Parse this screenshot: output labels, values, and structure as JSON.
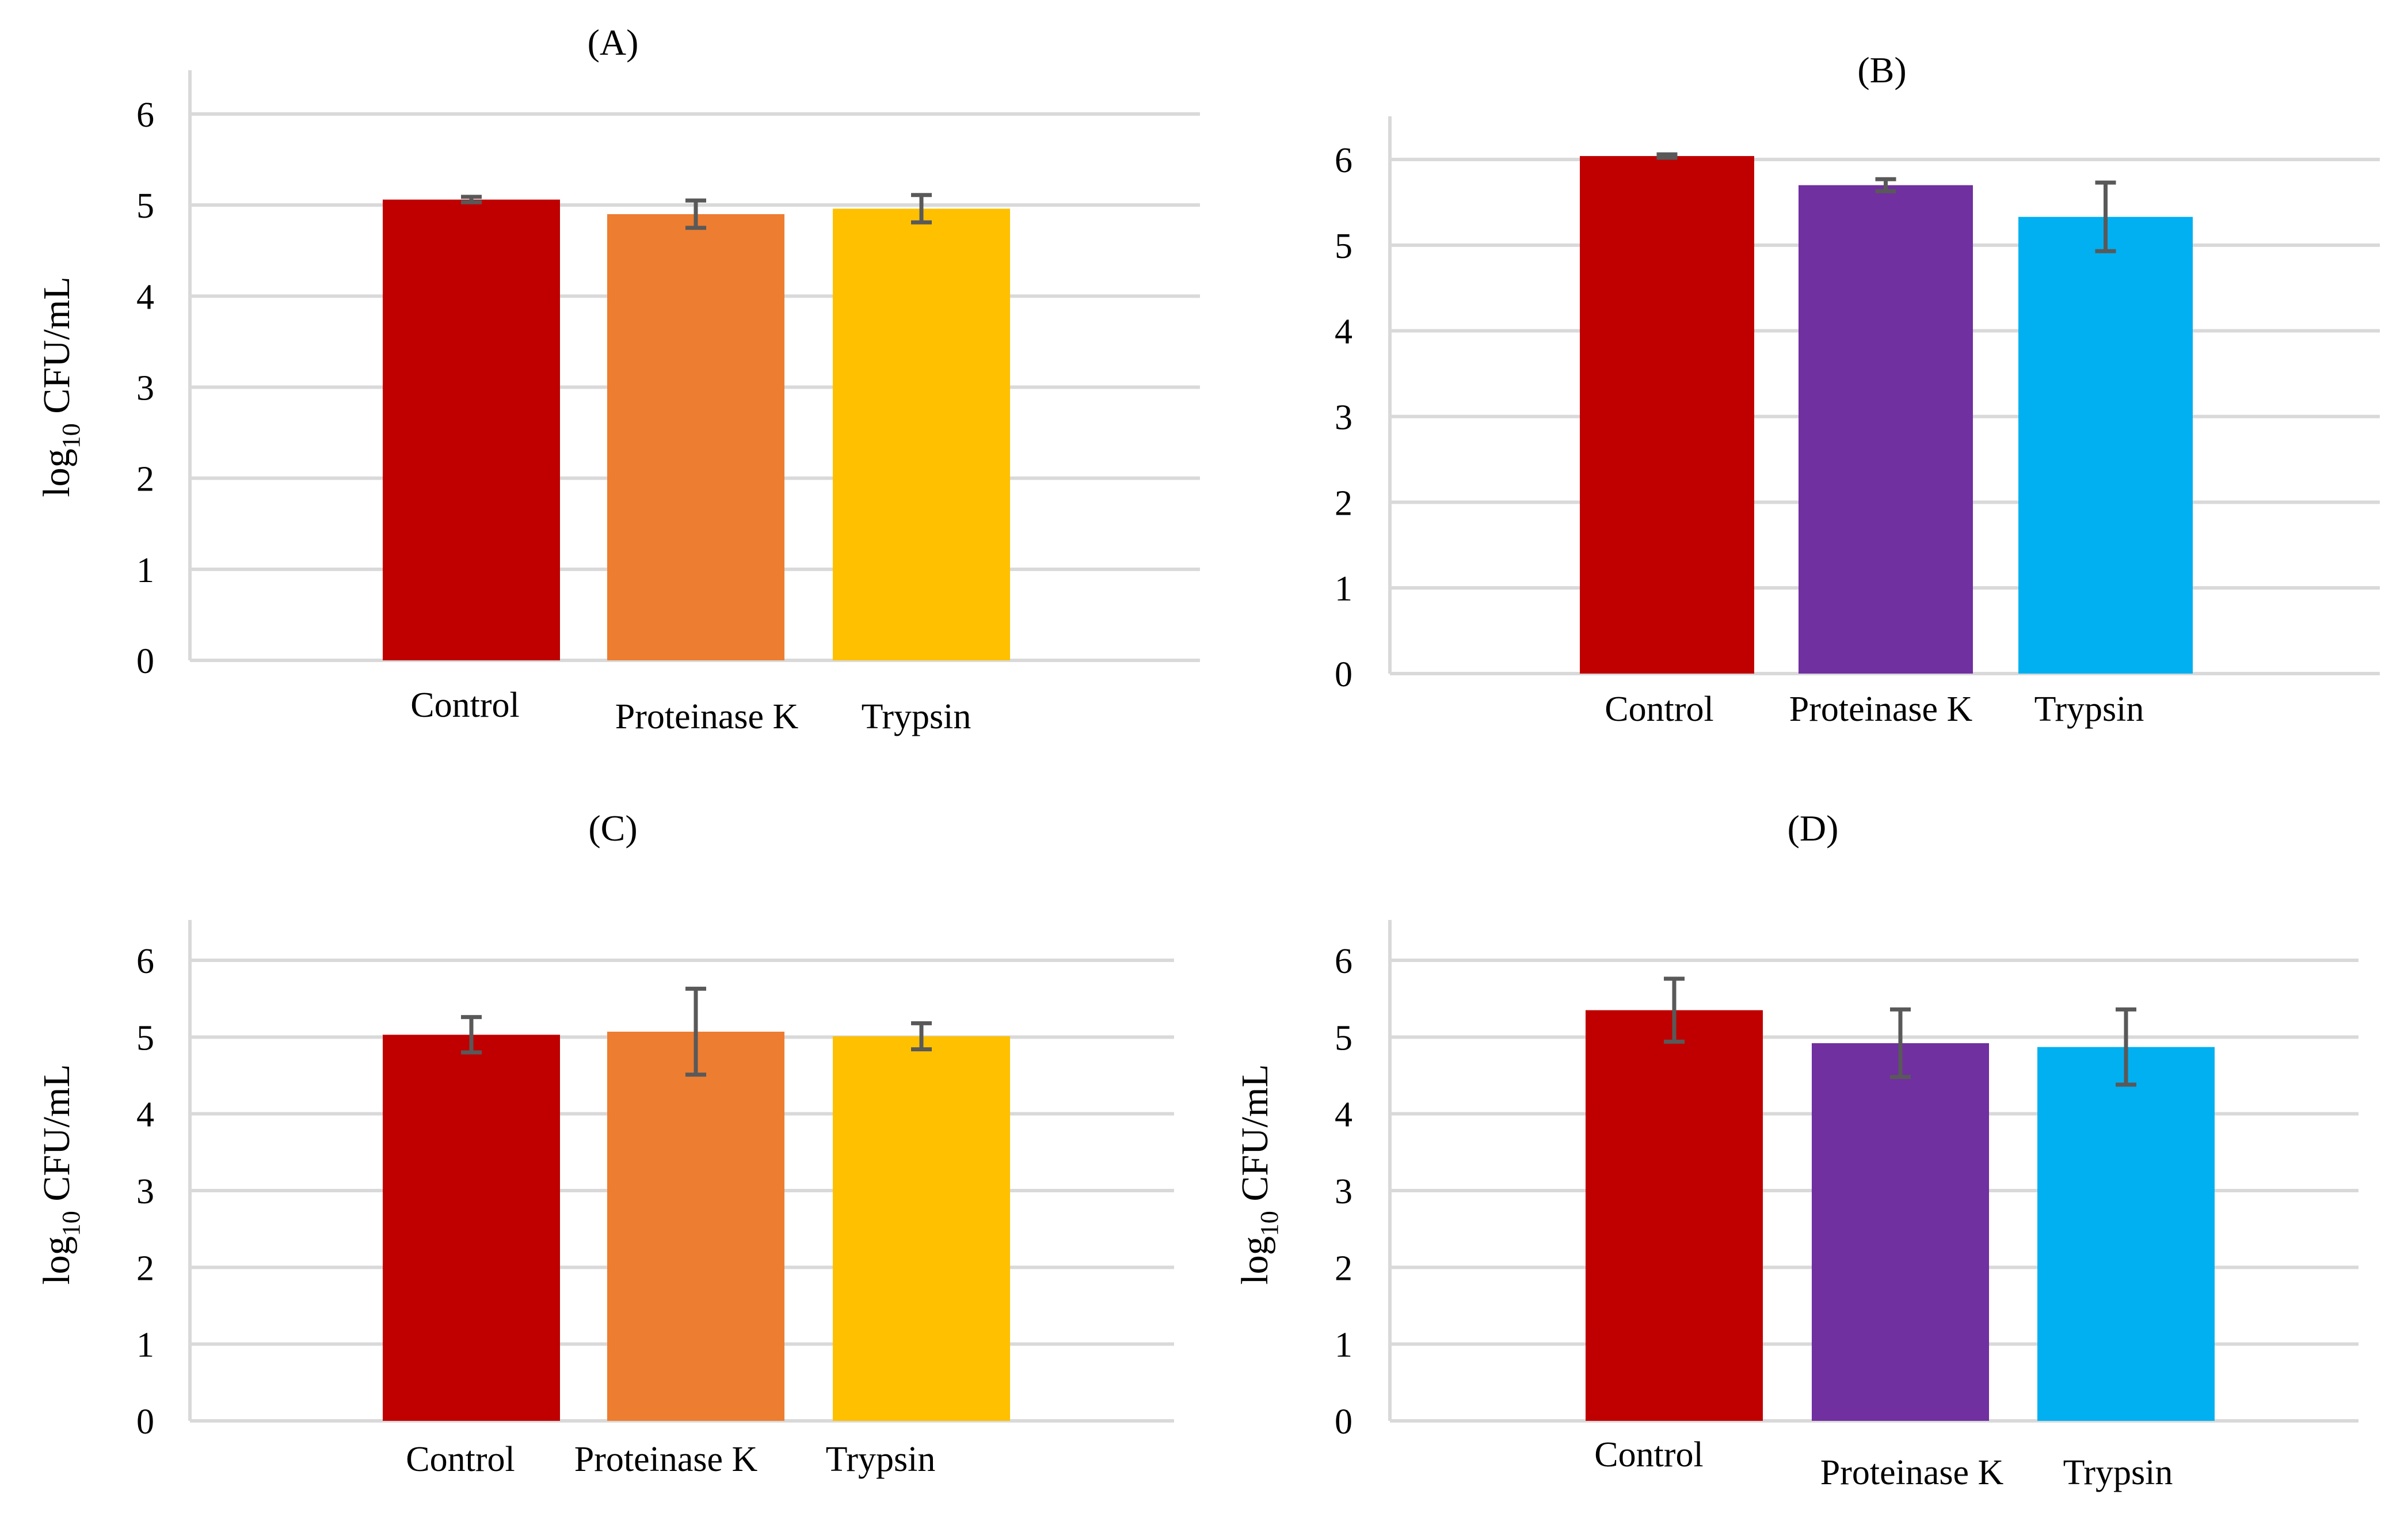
{
  "y_axis_label": {
    "main": "log",
    "sub": "10",
    "unit": " CFU/mL"
  },
  "chart_data": [
    {
      "type": "bar",
      "title": "(A)",
      "xlabel": "",
      "ylabel": "log10 CFU/mL",
      "ylim": [
        0,
        6.5
      ],
      "yticks": [
        0,
        1,
        2,
        3,
        4,
        5,
        6
      ],
      "grid": true,
      "categories": [
        "Control",
        "Proteinase K",
        "Trypsin"
      ],
      "values": [
        5.06,
        4.9,
        4.96
      ],
      "errors": [
        0.03,
        0.15,
        0.15
      ],
      "colors": [
        "#C00000",
        "#ED7D31",
        "#FFC000"
      ]
    },
    {
      "type": "bar",
      "title": "(B)",
      "xlabel": "",
      "ylabel": "",
      "ylim": [
        0,
        6.5
      ],
      "yticks": [
        0,
        1,
        2,
        3,
        4,
        5,
        6
      ],
      "grid": true,
      "categories": [
        "Control",
        "Proteinase K",
        "Trypsin"
      ],
      "values": [
        6.04,
        5.7,
        5.33
      ],
      "errors": [
        0.02,
        0.07,
        0.4
      ],
      "colors": [
        "#C00000",
        "#7030A0",
        "#00B0F0"
      ]
    },
    {
      "type": "bar",
      "title": "(C)",
      "xlabel": "",
      "ylabel": "log10 CFU/mL",
      "ylim": [
        0,
        6.5
      ],
      "yticks": [
        0,
        1,
        2,
        3,
        4,
        5,
        6
      ],
      "grid": true,
      "categories": [
        "Control",
        "Proteinase K",
        "Trypsin"
      ],
      "values": [
        5.03,
        5.07,
        5.01
      ],
      "errors": [
        0.23,
        0.56,
        0.17
      ],
      "colors": [
        "#C00000",
        "#ED7D31",
        "#FFC000"
      ]
    },
    {
      "type": "bar",
      "title": "(D)",
      "xlabel": "",
      "ylabel": "log10 CFU/mL",
      "ylim": [
        0,
        6.5
      ],
      "yticks": [
        0,
        1,
        2,
        3,
        4,
        5,
        6
      ],
      "grid": true,
      "categories": [
        "Control",
        "Proteinase K",
        "Trypsin"
      ],
      "values": [
        5.35,
        4.92,
        4.87
      ],
      "errors": [
        0.41,
        0.44,
        0.49
      ],
      "colors": [
        "#C00000",
        "#7030A0",
        "#00B0F0"
      ]
    }
  ]
}
